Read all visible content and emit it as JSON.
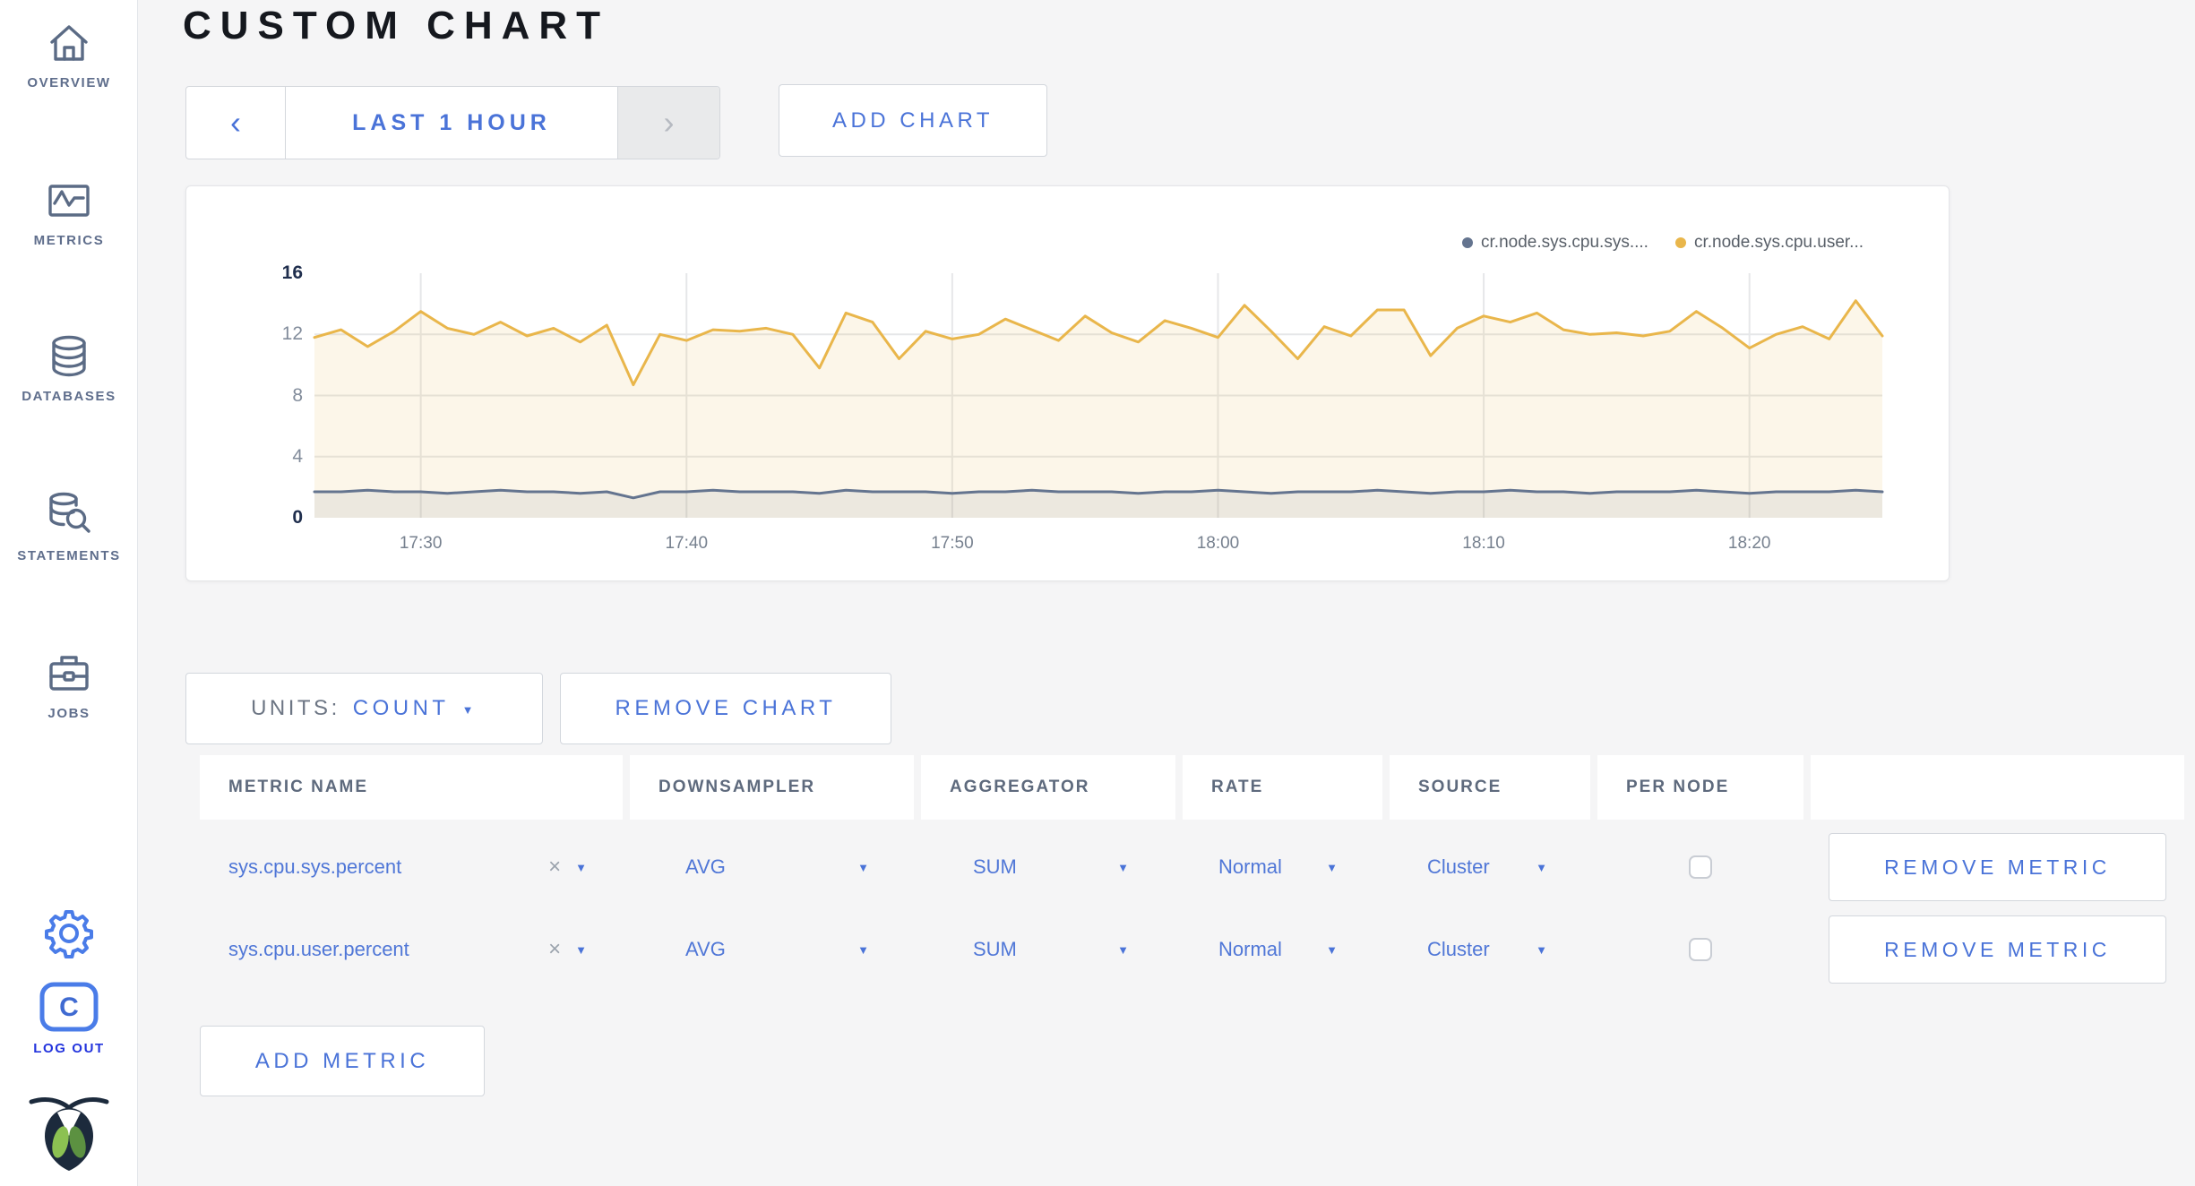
{
  "sidebar": {
    "items": [
      {
        "label": "OVERVIEW",
        "icon": "home-icon"
      },
      {
        "label": "METRICS",
        "icon": "metrics-icon"
      },
      {
        "label": "DATABASES",
        "icon": "database-icon"
      },
      {
        "label": "STATEMENTS",
        "icon": "statements-icon"
      },
      {
        "label": "JOBS",
        "icon": "jobs-icon"
      }
    ],
    "logout_label": "LOG OUT"
  },
  "header": {
    "title": "CUSTOM CHART",
    "time_range_label": "LAST 1 HOUR",
    "prev_arrow": "‹",
    "next_arrow": "›",
    "add_chart_label": "ADD CHART"
  },
  "chart_controls": {
    "units_label": "UNITS:",
    "units_value": "COUNT",
    "remove_chart_label": "REMOVE CHART",
    "add_metric_label": "ADD METRIC"
  },
  "table": {
    "headers": [
      "METRIC NAME",
      "DOWNSAMPLER",
      "AGGREGATOR",
      "RATE",
      "SOURCE",
      "PER NODE",
      ""
    ],
    "rows": [
      {
        "metric": "sys.cpu.sys.percent",
        "downsampler": "AVG",
        "aggregator": "SUM",
        "rate": "Normal",
        "source": "Cluster",
        "per_node_checked": false,
        "remove_label": "REMOVE METRIC"
      },
      {
        "metric": "sys.cpu.user.percent",
        "downsampler": "AVG",
        "aggregator": "SUM",
        "rate": "Normal",
        "source": "Cluster",
        "per_node_checked": false,
        "remove_label": "REMOVE METRIC"
      }
    ]
  },
  "chart_data": {
    "type": "line",
    "title": "",
    "xlabel": "",
    "ylabel": "",
    "ylim": [
      0,
      16
    ],
    "y_ticks": [
      0,
      4,
      8,
      12,
      16
    ],
    "y_gridlines": [
      4,
      8,
      12
    ],
    "x_ticks": [
      "17:30",
      "17:40",
      "17:50",
      "18:00",
      "18:10",
      "18:20"
    ],
    "tick_minutes": [
      4,
      14,
      24,
      34,
      44,
      54
    ],
    "x_start": "17:26",
    "x_end": "18:25",
    "grid": true,
    "legend_position": "top-right",
    "series": [
      {
        "name": "cr.node.sys.cpu.sys....",
        "color": "#64748f",
        "fill": "rgba(101,112,135,0.10)",
        "values": [
          1.7,
          1.7,
          1.8,
          1.7,
          1.7,
          1.6,
          1.7,
          1.8,
          1.7,
          1.7,
          1.6,
          1.7,
          1.3,
          1.7,
          1.7,
          1.8,
          1.7,
          1.7,
          1.7,
          1.6,
          1.8,
          1.7,
          1.7,
          1.7,
          1.6,
          1.7,
          1.7,
          1.8,
          1.7,
          1.7,
          1.7,
          1.6,
          1.7,
          1.7,
          1.8,
          1.7,
          1.6,
          1.7,
          1.7,
          1.7,
          1.8,
          1.7,
          1.6,
          1.7,
          1.7,
          1.8,
          1.7,
          1.7,
          1.6,
          1.7,
          1.7,
          1.7,
          1.8,
          1.7,
          1.6,
          1.7,
          1.7,
          1.7,
          1.8,
          1.7
        ]
      },
      {
        "name": "cr.node.sys.cpu.user...",
        "color": "#e9b64b",
        "fill": "rgba(233,182,75,0.12)",
        "values": [
          11.8,
          12.3,
          11.2,
          12.2,
          13.5,
          12.4,
          12.0,
          12.8,
          11.9,
          12.4,
          11.5,
          12.6,
          8.7,
          12.0,
          11.6,
          12.3,
          12.2,
          12.4,
          12.0,
          9.8,
          13.4,
          12.8,
          10.4,
          12.2,
          11.7,
          12.0,
          13.0,
          12.3,
          11.6,
          13.2,
          12.1,
          11.5,
          12.9,
          12.4,
          11.8,
          13.9,
          12.2,
          10.4,
          12.5,
          11.9,
          13.6,
          13.6,
          10.6,
          12.4,
          13.2,
          12.8,
          13.4,
          12.3,
          12.0,
          12.1,
          11.9,
          12.2,
          13.5,
          12.4,
          11.1,
          12.0,
          12.5,
          11.7,
          14.2,
          11.9
        ]
      }
    ]
  },
  "colors": {
    "accent_blue": "#4a73d8",
    "logout_blue": "#2334dd",
    "sidebar_icon": "#5b6b85",
    "series_sys": "#64748f",
    "series_user": "#e9b64b",
    "grid_line": "#e6e7e9",
    "page_bg": "#f5f5f6"
  }
}
